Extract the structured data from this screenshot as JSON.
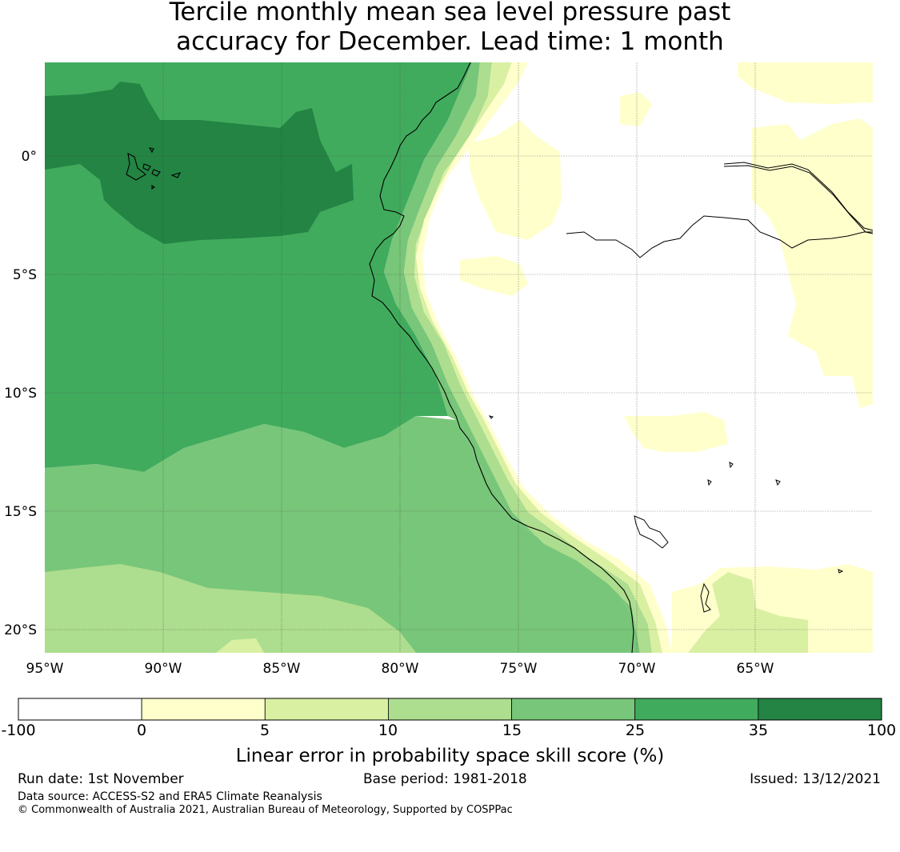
{
  "title": {
    "line1": "Tercile monthly mean sea level pressure past",
    "line2": "accuracy for December. Lead time: 1 month"
  },
  "map": {
    "latitude_labels": [
      "0°",
      "5°S",
      "10°S",
      "15°S",
      "20°S"
    ],
    "longitude_labels": [
      "95°W",
      "90°W",
      "85°W",
      "80°W",
      "75°W",
      "70°W",
      "65°W"
    ],
    "longitude_range": [
      -95,
      -60
    ],
    "latitude_range": [
      -21,
      4
    ]
  },
  "colorbar": {
    "boundaries": [
      "-100",
      "0",
      "5",
      "10",
      "15",
      "25",
      "35",
      "100"
    ],
    "colors": [
      "#ffffff",
      "#ffffcc",
      "#d9f0a3",
      "#addd8e",
      "#78c679",
      "#41ab5d",
      "#238443"
    ],
    "label": "Linear error in probability space skill score (%)"
  },
  "footer": {
    "run_date": "Run date: 1st November",
    "base_period": "Base period: 1981-2018",
    "issued": "Issued: 13/12/2021",
    "data_source": "Data source: ACCESS-S2 and ERA5 Climate Reanalysis",
    "copyright": "© Commonwealth of Australia 2021, Australian Bureau of Meteorology, Supported by COSPPac"
  }
}
